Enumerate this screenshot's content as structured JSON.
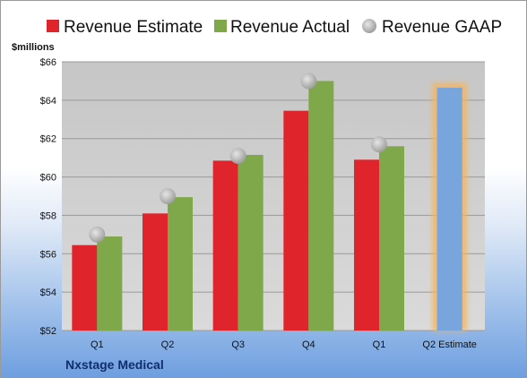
{
  "company": "Nxstage Medical",
  "colors": {
    "estimate": "#e0242b",
    "actual": "#7fa84a",
    "gaap": "#b9b9b9",
    "projection": "#78a6dc",
    "projection_glow": "#f6b35a",
    "plot_bg": "#cfcfcf"
  },
  "chart_data": {
    "type": "bar",
    "ylabel": "$millions",
    "ylim": [
      52,
      66
    ],
    "yticks": [
      "$52",
      "$54",
      "$56",
      "$58",
      "$60",
      "$62",
      "$64",
      "$66"
    ],
    "ytick_values": [
      52,
      54,
      56,
      58,
      60,
      62,
      64,
      66
    ],
    "categories": [
      "Q1",
      "Q2",
      "Q3",
      "Q4",
      "Q1",
      "Q2 Estimate"
    ],
    "legend": {
      "position": "top"
    },
    "grid": true,
    "series": [
      {
        "name": "Revenue Estimate",
        "kind": "bar",
        "color": "#e0242b",
        "values": [
          56.45,
          58.1,
          60.85,
          63.45,
          60.9,
          null
        ]
      },
      {
        "name": "Revenue Actual",
        "kind": "bar",
        "color": "#7fa84a",
        "values": [
          56.9,
          58.95,
          61.15,
          65.0,
          61.6,
          null
        ]
      },
      {
        "name": "Revenue GAAP",
        "kind": "marker",
        "color": "#b9b9b9",
        "values": [
          57.0,
          59.0,
          61.1,
          65.0,
          61.7,
          null
        ]
      },
      {
        "name": "",
        "kind": "bar",
        "color": "#78a6dc",
        "values": [
          null,
          null,
          null,
          null,
          null,
          64.65
        ]
      }
    ]
  }
}
